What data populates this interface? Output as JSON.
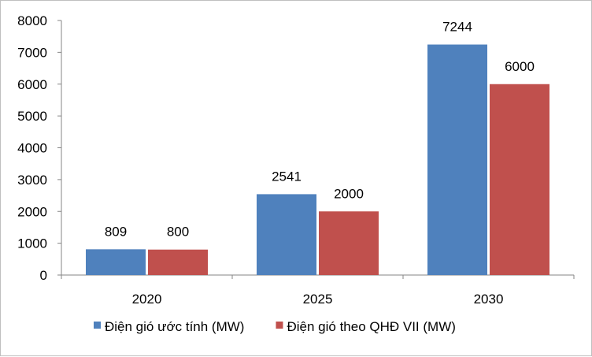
{
  "chart_data": {
    "type": "bar",
    "title": "",
    "xlabel": "",
    "ylabel": "",
    "categories": [
      "2020",
      "2025",
      "2030"
    ],
    "ylim": [
      0,
      8000
    ],
    "yticks": [
      0,
      1000,
      2000,
      3000,
      4000,
      5000,
      6000,
      7000,
      8000
    ],
    "grid": false,
    "legend_position": "bottom",
    "series": [
      {
        "name": "Điện gió ước tính (MW)",
        "values": [
          809,
          2541,
          7244
        ],
        "color": "#4f81bd"
      },
      {
        "name": "Điện gió theo QHĐ VII (MW)",
        "values": [
          800,
          2000,
          6000
        ],
        "color": "#c0504d"
      }
    ]
  }
}
